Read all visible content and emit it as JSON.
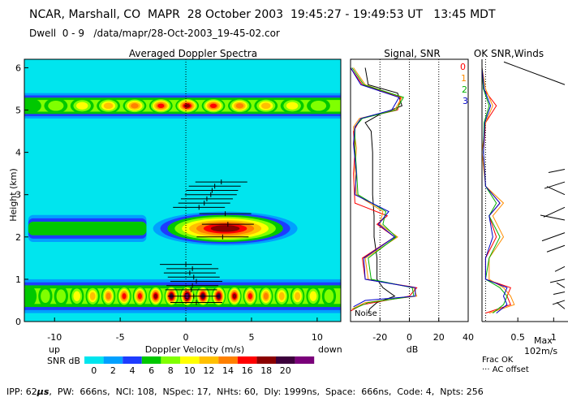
{
  "header": {
    "line1": "NCAR, Marshall, CO  MAPR  28 October 2003  19:45:27 - 19:49:53 UT   13:45 MDT",
    "line2": "Dwell  0 - 9   /data/mapr/28-Oct-2003_19-45-02.cor"
  },
  "footer": {
    "ipp_label": "IPP: 62",
    "ipp_unit": "μs",
    "rest": ",  PW:  666ns,  NCI: 108,  NSpec: 17,  NHts: 60,  Dly: 1999ns,  Space:  666ns,  Code: 4,  Npts: 256"
  },
  "colors": {
    "background": "#00e5ee",
    "scale": [
      "#00e5ee",
      "#00a0ff",
      "#1e3cff",
      "#00c800",
      "#80ff00",
      "#ffff00",
      "#ffc000",
      "#ff8000",
      "#ff0000",
      "#8b0000",
      "#3c003c",
      "#7a007a"
    ]
  },
  "chart_data": [
    {
      "type": "heatmap",
      "title": "Averaged Doppler Spectra",
      "xlabel": "Doppler Velocity (m/s)",
      "ylabel": "Height (km)",
      "xlim": [
        -12.3,
        11.8
      ],
      "ylim": [
        0,
        6.2
      ],
      "xticks": [
        -10,
        -5,
        0,
        5,
        10
      ],
      "yticks": [
        0,
        1,
        2,
        3,
        4,
        5,
        6
      ],
      "left_note": "up",
      "right_note": "down",
      "colorbar": {
        "label": "SNR dB",
        "ticks": [
          "0",
          "2",
          "4",
          "6",
          "8",
          "10",
          "12",
          "14",
          "16",
          "18",
          "20"
        ]
      },
      "layers": [
        {
          "name": "upper-layer",
          "height_range": [
            4.8,
            5.4
          ],
          "velocity_range": [
            -12.3,
            11.8
          ],
          "snr_max_db": 16
        },
        {
          "name": "middle-layer",
          "height_range": [
            1.8,
            2.6
          ],
          "velocity_range": [
            -12,
            10
          ],
          "snr_max_db": 18
        },
        {
          "name": "lower-layer",
          "height_range": [
            0.2,
            1.0
          ],
          "velocity_range": [
            -12.3,
            11.8
          ],
          "snr_max_db": 20
        }
      ],
      "wind_marks": [
        {
          "height": 3.3,
          "velocity": 2.7
        },
        {
          "height": 3.2,
          "velocity": 2.2
        },
        {
          "height": 3.1,
          "velocity": 2.0
        },
        {
          "height": 3.0,
          "velocity": 1.9
        },
        {
          "height": 2.9,
          "velocity": 1.6
        },
        {
          "height": 2.8,
          "velocity": 1.4
        },
        {
          "height": 2.7,
          "velocity": 1.0
        },
        {
          "height": 2.55,
          "velocity": 3.0
        },
        {
          "height": 2.3,
          "velocity": 3.2
        },
        {
          "height": 2.0,
          "velocity": 2.8
        },
        {
          "height": 1.35,
          "velocity": 0.0
        },
        {
          "height": 1.25,
          "velocity": 0.5
        },
        {
          "height": 1.15,
          "velocity": 0.3
        },
        {
          "height": 1.05,
          "velocity": 0.6
        },
        {
          "height": 0.95,
          "velocity": 0.8
        },
        {
          "height": 0.85,
          "velocity": 0.5
        },
        {
          "height": 0.75,
          "velocity": 0.4
        },
        {
          "height": 0.6,
          "velocity": 0.6
        },
        {
          "height": 0.45,
          "velocity": 0.8
        }
      ]
    },
    {
      "type": "line",
      "title": "Signal, SNR",
      "xlabel": "dB",
      "xlim": [
        -40,
        40
      ],
      "ylim": [
        0,
        6.2
      ],
      "xticks": [
        -20,
        0,
        20,
        40
      ],
      "reference_lines": [
        -20,
        0,
        20
      ],
      "note": "Noise",
      "profile_labels": [
        {
          "text": "0",
          "color": "#ff0000"
        },
        {
          "text": "1",
          "color": "#ff8c00"
        },
        {
          "text": "2",
          "color": "#00b000"
        },
        {
          "text": "3",
          "color": "#0000c8"
        }
      ],
      "series": [
        {
          "name": "signal",
          "color": "#000000",
          "points": [
            [
              -28,
              0.2
            ],
            [
              -27,
              0.3
            ],
            [
              -22,
              0.45
            ],
            [
              -10,
              0.6
            ],
            [
              -18,
              0.8
            ],
            [
              -22,
              1.0
            ],
            [
              -22,
              1.5
            ],
            [
              -24,
              2.0
            ],
            [
              -24,
              2.5
            ],
            [
              -25,
              3.0
            ],
            [
              -25,
              3.5
            ],
            [
              -25,
              4.0
            ],
            [
              -26,
              4.5
            ],
            [
              -30,
              4.7
            ],
            [
              -20,
              4.9
            ],
            [
              -5,
              5.1
            ],
            [
              -8,
              5.4
            ],
            [
              -28,
              5.6
            ],
            [
              -30,
              6.0
            ]
          ]
        },
        {
          "name": "snr-0",
          "color": "#ff0000",
          "points": [
            [
              -40,
              0.25
            ],
            [
              -32,
              0.4
            ],
            [
              0,
              0.6
            ],
            [
              5,
              0.8
            ],
            [
              -30,
              1.0
            ],
            [
              -32,
              1.5
            ],
            [
              -10,
              2.0
            ],
            [
              -22,
              2.3
            ],
            [
              -15,
              2.5
            ],
            [
              -37,
              2.8
            ],
            [
              -38,
              3.5
            ],
            [
              -37,
              4.0
            ],
            [
              -38,
              4.5
            ],
            [
              -33,
              4.8
            ],
            [
              -8,
              5.0
            ],
            [
              -6,
              5.3
            ],
            [
              -32,
              5.6
            ],
            [
              -40,
              6.0
            ]
          ]
        },
        {
          "name": "snr-1",
          "color": "#ff8c00",
          "points": [
            [
              -39,
              0.3
            ],
            [
              -30,
              0.45
            ],
            [
              5,
              0.6
            ],
            [
              3,
              0.8
            ],
            [
              -28,
              1.0
            ],
            [
              -30,
              1.5
            ],
            [
              -8,
              2.0
            ],
            [
              -20,
              2.3
            ],
            [
              -18,
              2.6
            ],
            [
              -36,
              3.0
            ],
            [
              -37,
              3.6
            ],
            [
              -36,
              4.1
            ],
            [
              -38,
              4.6
            ],
            [
              -34,
              4.8
            ],
            [
              -10,
              5.0
            ],
            [
              -5,
              5.3
            ],
            [
              -30,
              5.6
            ],
            [
              -38,
              6.0
            ]
          ]
        },
        {
          "name": "snr-2",
          "color": "#00b000",
          "points": [
            [
              -38,
              0.3
            ],
            [
              -28,
              0.45
            ],
            [
              3,
              0.6
            ],
            [
              2,
              0.8
            ],
            [
              -26,
              1.0
            ],
            [
              -28,
              1.5
            ],
            [
              -9,
              2.0
            ],
            [
              -18,
              2.3
            ],
            [
              -16,
              2.6
            ],
            [
              -35,
              3.0
            ],
            [
              -36,
              3.6
            ],
            [
              -37,
              4.1
            ],
            [
              -37,
              4.6
            ],
            [
              -32,
              4.8
            ],
            [
              -9,
              5.0
            ],
            [
              -4,
              5.3
            ],
            [
              -31,
              5.6
            ],
            [
              -39,
              6.0
            ]
          ]
        },
        {
          "name": "snr-3",
          "color": "#0000c8",
          "points": [
            [
              -38,
              0.35
            ],
            [
              -30,
              0.5
            ],
            [
              4,
              0.6
            ],
            [
              4,
              0.8
            ],
            [
              -30,
              1.0
            ],
            [
              -31,
              1.5
            ],
            [
              -10,
              2.0
            ],
            [
              -21,
              2.3
            ],
            [
              -14,
              2.6
            ],
            [
              -37,
              3.0
            ],
            [
              -36,
              3.5
            ],
            [
              -38,
              4.2
            ],
            [
              -37,
              4.6
            ],
            [
              -33,
              4.8
            ],
            [
              -12,
              5.0
            ],
            [
              -7,
              5.3
            ],
            [
              -33,
              5.6
            ],
            [
              -40,
              6.0
            ]
          ]
        }
      ]
    },
    {
      "type": "line",
      "title": "OK SNR,Winds",
      "xlabel": "Frac OK",
      "xlim": [
        0,
        1.2
      ],
      "ylim": [
        0,
        6.2
      ],
      "xticks": [
        "0.5",
        "1"
      ],
      "note_ac": "AC offset",
      "max_label": "Max",
      "max_value": "102m/s",
      "series": [
        {
          "name": "frac-ok-0",
          "color": "#ff0000",
          "points": [
            [
              0.05,
              0.2
            ],
            [
              0.4,
              0.4
            ],
            [
              0.35,
              0.6
            ],
            [
              0.4,
              0.8
            ],
            [
              0.05,
              1.0
            ],
            [
              0.05,
              1.5
            ],
            [
              0.2,
              2.0
            ],
            [
              0.1,
              2.5
            ],
            [
              0.25,
              2.8
            ],
            [
              0.05,
              3.2
            ],
            [
              0.02,
              4.0
            ],
            [
              0.05,
              4.7
            ],
            [
              0.2,
              5.1
            ],
            [
              0.02,
              5.5
            ],
            [
              0.0,
              6.0
            ]
          ]
        },
        {
          "name": "frac-ok-1",
          "color": "#ff8c00",
          "points": [
            [
              0.1,
              0.2
            ],
            [
              0.45,
              0.4
            ],
            [
              0.4,
              0.6
            ],
            [
              0.3,
              0.8
            ],
            [
              0.1,
              1.0
            ],
            [
              0.1,
              1.5
            ],
            [
              0.3,
              2.0
            ],
            [
              0.15,
              2.5
            ],
            [
              0.3,
              2.8
            ],
            [
              0.05,
              3.2
            ],
            [
              0.0,
              4.0
            ],
            [
              0.05,
              4.7
            ],
            [
              0.15,
              5.1
            ],
            [
              0.05,
              5.5
            ],
            [
              0.0,
              6.0
            ]
          ]
        },
        {
          "name": "frac-ok-2",
          "color": "#00b000",
          "points": [
            [
              0.15,
              0.2
            ],
            [
              0.3,
              0.4
            ],
            [
              0.35,
              0.6
            ],
            [
              0.25,
              0.8
            ],
            [
              0.05,
              1.0
            ],
            [
              0.1,
              1.5
            ],
            [
              0.25,
              2.0
            ],
            [
              0.1,
              2.5
            ],
            [
              0.2,
              2.8
            ],
            [
              0.05,
              3.2
            ],
            [
              0.02,
              4.0
            ],
            [
              0.03,
              4.7
            ],
            [
              0.1,
              5.1
            ],
            [
              0.02,
              5.5
            ],
            [
              0.0,
              6.0
            ]
          ]
        },
        {
          "name": "frac-ok-3",
          "color": "#0000c8",
          "points": [
            [
              0.2,
              0.2
            ],
            [
              0.35,
              0.4
            ],
            [
              0.3,
              0.6
            ],
            [
              0.35,
              0.8
            ],
            [
              0.05,
              1.0
            ],
            [
              0.05,
              1.5
            ],
            [
              0.15,
              2.0
            ],
            [
              0.1,
              2.5
            ],
            [
              0.25,
              2.8
            ],
            [
              0.05,
              3.2
            ],
            [
              0.02,
              4.0
            ],
            [
              0.04,
              4.7
            ],
            [
              0.12,
              5.1
            ],
            [
              0.03,
              5.5
            ],
            [
              0.0,
              6.0
            ]
          ]
        }
      ],
      "wind_vectors": [
        {
          "height": 0.3,
          "dx": -10,
          "dy": -8
        },
        {
          "height": 0.5,
          "dx": -15,
          "dy": 5
        },
        {
          "height": 0.7,
          "dx": -14,
          "dy": 3
        },
        {
          "height": 0.8,
          "dx": -10,
          "dy": -6
        },
        {
          "height": 1.0,
          "dx": -18,
          "dy": 4
        },
        {
          "height": 1.3,
          "dx": -12,
          "dy": 6
        },
        {
          "height": 1.8,
          "dx": -22,
          "dy": 8
        },
        {
          "height": 2.1,
          "dx": -28,
          "dy": 10
        },
        {
          "height": 2.4,
          "dx": -30,
          "dy": -6
        },
        {
          "height": 2.7,
          "dx": -26,
          "dy": 12
        },
        {
          "height": 3.0,
          "dx": -22,
          "dy": -10
        },
        {
          "height": 3.3,
          "dx": -25,
          "dy": 8
        },
        {
          "height": 3.6,
          "dx": -20,
          "dy": 4
        },
        {
          "height": 5.6,
          "dx": -75,
          "dy": -28
        }
      ]
    }
  ]
}
